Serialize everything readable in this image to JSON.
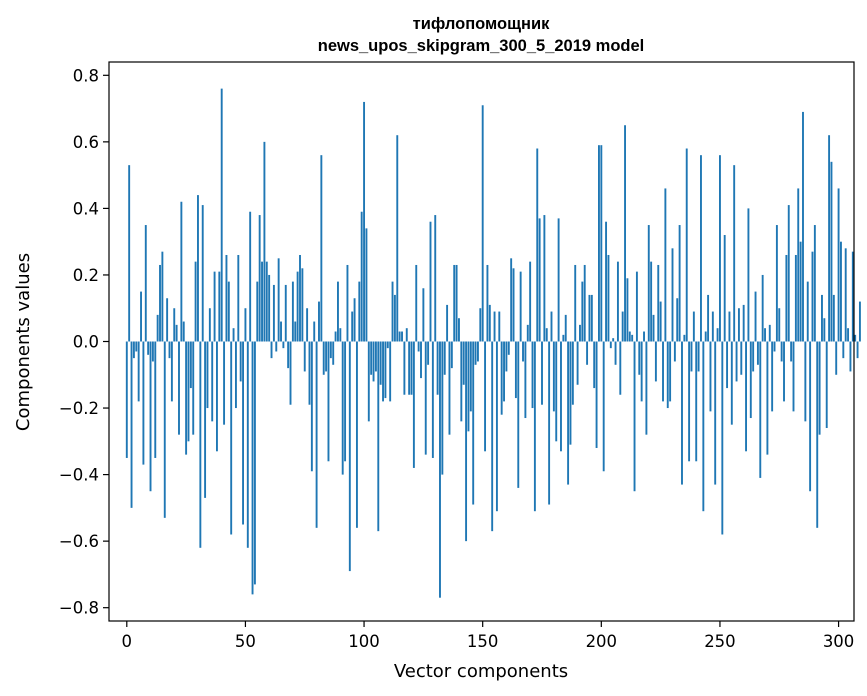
{
  "chart_data": {
    "type": "bar",
    "title": "тифлопомощник",
    "subtitle": "news_upos_skipgram_300_5_2019 model",
    "xlabel": "Vector components",
    "ylabel": "Components values",
    "xlim": [
      -7.5,
      306.5
    ],
    "ylim": [
      -0.84,
      0.84
    ],
    "xticks": [
      0,
      50,
      100,
      150,
      200,
      250,
      300
    ],
    "xtick_labels": [
      "0",
      "50",
      "100",
      "150",
      "200",
      "250",
      "300"
    ],
    "yticks": [
      -0.8,
      -0.6,
      -0.4,
      -0.2,
      0.0,
      0.2,
      0.4,
      0.6,
      0.8
    ],
    "ytick_labels": [
      "−0.8",
      "−0.6",
      "−0.4",
      "−0.2",
      "0.0",
      "0.2",
      "0.4",
      "0.6",
      "0.8"
    ],
    "color": "#1f77b4",
    "bar_width": 0.8,
    "values": [
      -0.35,
      0.53,
      -0.5,
      -0.05,
      -0.03,
      -0.18,
      0.15,
      -0.37,
      0.35,
      -0.04,
      -0.45,
      -0.06,
      -0.35,
      0.08,
      0.23,
      0.27,
      -0.53,
      0.13,
      -0.05,
      -0.18,
      0.1,
      0.05,
      -0.28,
      0.42,
      0.06,
      -0.34,
      -0.3,
      -0.14,
      -0.28,
      0.24,
      0.44,
      -0.62,
      0.41,
      -0.47,
      -0.2,
      0.1,
      -0.24,
      0.21,
      -0.33,
      0.21,
      0.76,
      -0.25,
      0.26,
      0.18,
      -0.58,
      0.04,
      -0.2,
      0.26,
      -0.12,
      -0.55,
      0.1,
      -0.62,
      0.39,
      -0.76,
      -0.73,
      0.18,
      0.38,
      0.24,
      0.6,
      0.24,
      0.2,
      -0.05,
      0.17,
      -0.03,
      0.25,
      0.06,
      -0.02,
      0.17,
      -0.08,
      -0.19,
      0.18,
      0.06,
      0.21,
      0.26,
      0.22,
      -0.09,
      0.1,
      -0.19,
      -0.39,
      0.06,
      -0.56,
      0.12,
      0.56,
      -0.1,
      -0.09,
      -0.36,
      -0.05,
      -0.07,
      0.03,
      0.18,
      0.04,
      -0.4,
      -0.36,
      0.23,
      -0.69,
      0.09,
      0.13,
      -0.56,
      0.18,
      0.39,
      0.72,
      0.34,
      -0.24,
      -0.1,
      -0.12,
      -0.09,
      -0.57,
      -0.13,
      -0.18,
      -0.17,
      -0.02,
      -0.18,
      0.18,
      0.14,
      0.62,
      0.03,
      0.03,
      -0.16,
      0.04,
      -0.16,
      -0.16,
      -0.38,
      0.23,
      -0.03,
      -0.11,
      0.16,
      -0.34,
      -0.07,
      0.36,
      -0.35,
      0.38,
      -0.16,
      -0.77,
      -0.4,
      -0.1,
      0.11,
      -0.28,
      -0.08,
      0.23,
      0.23,
      0.07,
      -0.24,
      -0.13,
      -0.6,
      -0.27,
      -0.21,
      -0.49,
      -0.07,
      -0.06,
      0.1,
      0.71,
      -0.33,
      0.23,
      0.11,
      -0.57,
      0.09,
      -0.51,
      0.09,
      -0.22,
      -0.18,
      -0.09,
      -0.04,
      0.25,
      0.22,
      -0.17,
      -0.44,
      0.21,
      -0.06,
      -0.23,
      0.05,
      0.24,
      -0.2,
      -0.51,
      0.58,
      0.37,
      -0.19,
      0.38,
      0.04,
      -0.49,
      0.09,
      -0.21,
      -0.3,
      0.37,
      -0.33,
      0.02,
      0.08,
      -0.43,
      -0.31,
      -0.19,
      0.23,
      -0.13,
      0.05,
      0.18,
      0.23,
      -0.07,
      0.14,
      0.14,
      -0.14,
      -0.32,
      0.59,
      0.59,
      -0.39,
      0.36,
      0.26,
      -0.02,
      0.01,
      -0.07,
      0.24,
      -0.16,
      0.09,
      0.65,
      0.19,
      0.03,
      0.02,
      -0.45,
      0.21,
      -0.1,
      -0.18,
      0.03,
      -0.28,
      0.35,
      0.24,
      0.08,
      -0.12,
      0.23,
      0.12,
      -0.18,
      0.46,
      -0.2,
      -0.18,
      0.28,
      -0.06,
      0.13,
      0.35,
      -0.43,
      0.02,
      0.58,
      -0.36,
      -0.09,
      0.09,
      -0.36,
      -0.09,
      0.56,
      -0.51,
      0.03,
      0.14,
      -0.21,
      0.09,
      -0.43,
      0.04,
      0.56,
      -0.58,
      0.32,
      -0.14,
      0.09,
      -0.25,
      0.53,
      -0.12,
      0.1,
      -0.1,
      0.11,
      -0.33,
      0.4,
      -0.23,
      -0.09,
      0.15,
      -0.07,
      -0.41,
      0.2,
      0.04,
      -0.34,
      0.05,
      -0.21,
      -0.03,
      0.35,
      0.1,
      -0.06,
      -0.18,
      0.26,
      0.41,
      -0.06,
      -0.21,
      0.26,
      0.46,
      0.3,
      0.69,
      -0.24,
      0.18,
      -0.45,
      0.27,
      0.35,
      -0.56,
      -0.28,
      0.14,
      0.07,
      -0.26,
      0.62,
      0.54,
      0.14,
      -0.1,
      0.46,
      0.3,
      -0.05,
      0.28,
      0.04,
      -0.09,
      0.27,
      0.02,
      -0.05,
      0.12
    ]
  }
}
